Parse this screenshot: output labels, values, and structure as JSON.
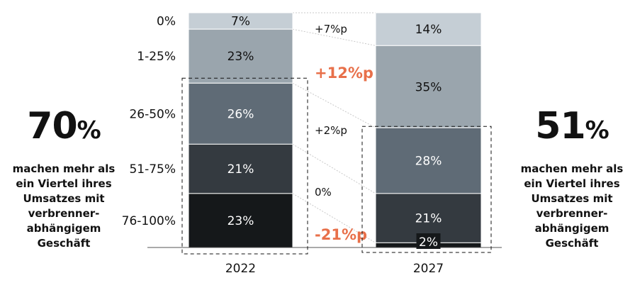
{
  "chart_data": {
    "type": "bar",
    "stacked": true,
    "categories": [
      "2022",
      "2027"
    ],
    "series": [
      {
        "name": "0%",
        "values": [
          7,
          14
        ],
        "color": "#c5ced5"
      },
      {
        "name": "1-25%",
        "values": [
          23,
          35
        ],
        "color": "#9aa5ad"
      },
      {
        "name": "26-50%",
        "values": [
          26,
          28
        ],
        "color": "#5f6b76"
      },
      {
        "name": "51-75%",
        "values": [
          21,
          21
        ],
        "color": "#343a40"
      },
      {
        "name": "76-100%",
        "values": [
          23,
          2
        ],
        "color": "#15181a"
      }
    ],
    "ylim": [
      0,
      100
    ],
    "segment_labels": [
      [
        "7%",
        "23%",
        "26%",
        "21%",
        "23%"
      ],
      [
        "14%",
        "35%",
        "28%",
        "21%",
        "2%"
      ]
    ],
    "changes": [
      {
        "label": "+7%p",
        "highlight": false
      },
      {
        "label": "+12%p",
        "highlight": true
      },
      {
        "label": "+2%p",
        "highlight": false
      },
      {
        "label": "0%",
        "highlight": false
      },
      {
        "label": "-21%p",
        "highlight": true
      }
    ],
    "highlight_color": "#e8704a"
  },
  "left_stat": {
    "number": "70",
    "unit": "%",
    "text": "machen mehr als ein Viertel ihres Umsatzes mit verbrenner-abhängigem Geschäft"
  },
  "right_stat": {
    "number": "51",
    "unit": "%",
    "text": "machen mehr als ein Viertel ihres Umsatzes mit verbrenner-abhängigem Geschäft"
  }
}
